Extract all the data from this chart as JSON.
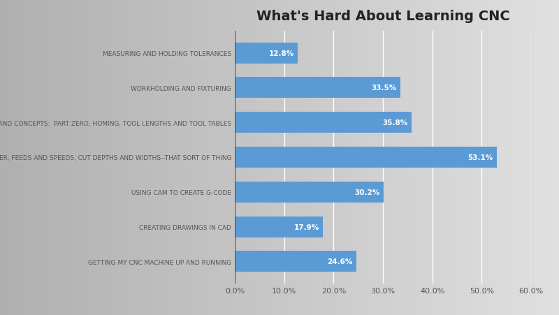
{
  "title": "What's Hard About Learning CNC",
  "categories": [
    "GETTING MY CNC MACHINE UP AND RUNNING",
    "CREATING DRAWINGS IN CAD",
    "USING CAM TO CREATE G-CODE",
    "FIGURING OUT WHICH CUTTER, FEEDS AND SPEEDS, CUT DEPTHS AND WIDTHS--THAT SORT OF THING",
    "OPERATIONAL DETAILS AND CONCEPTS:  PART ZERO, HOMING, TOOL LENGTHS AND TOOL TABLES",
    "WORKHOLDING AND FIXTURING",
    "MEASURING AND HOLDING TOLERANCES"
  ],
  "values": [
    24.6,
    17.9,
    30.2,
    53.1,
    35.8,
    33.5,
    12.8
  ],
  "bar_color": "#5b9bd5",
  "bg_left_color": "#c8c8c8",
  "bg_right_color": "#e8e8e8",
  "label_color": "#ffffff",
  "text_color": "#555555",
  "xlim": [
    0,
    60
  ],
  "xtick_values": [
    0,
    10,
    20,
    30,
    40,
    50,
    60
  ],
  "title_fontsize": 14,
  "label_fontsize": 6.5,
  "value_fontsize": 7.5,
  "xtick_fontsize": 8
}
